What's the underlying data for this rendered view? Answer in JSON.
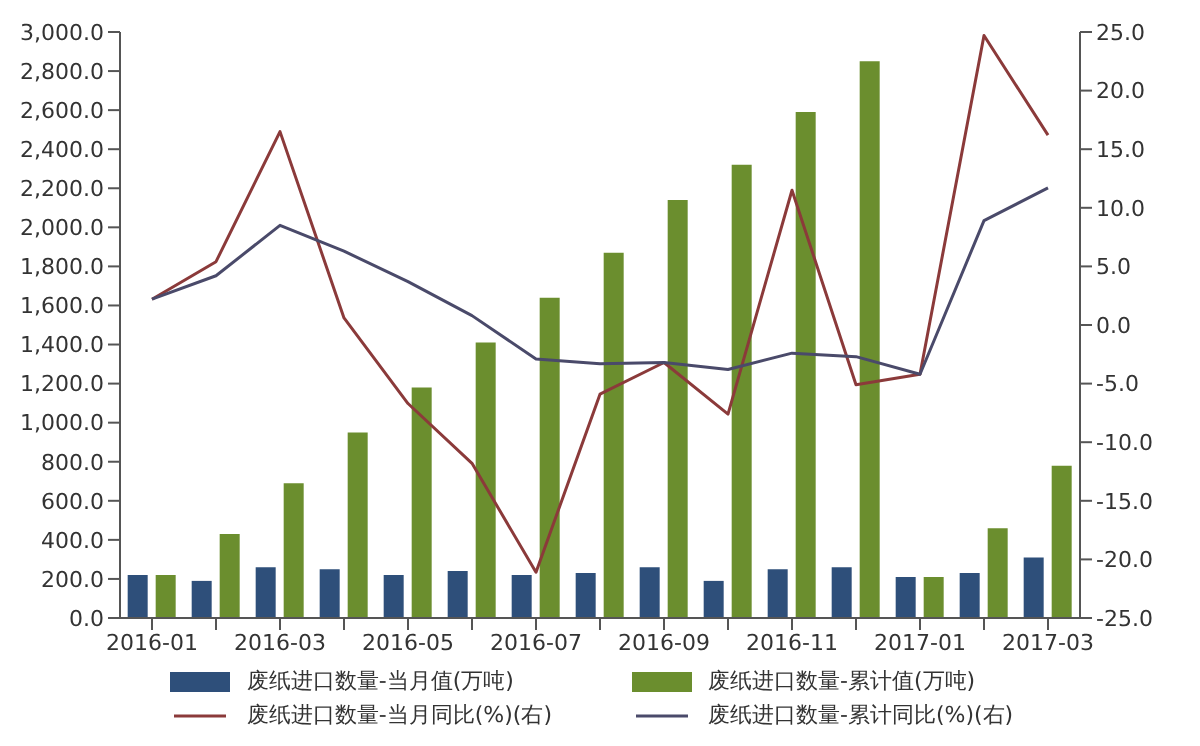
{
  "chart_data": {
    "type": "bar",
    "categories": [
      "2016-01",
      null,
      "2016-03",
      null,
      "2016-05",
      null,
      "2016-07",
      null,
      "2016-09",
      null,
      "2016-11",
      null,
      "2017-01",
      null,
      "2017-03"
    ],
    "series": [
      {
        "name": "废纸进口数量-当月值(万吨)",
        "color": "#2e4f7a",
        "values": [
          220,
          190,
          260,
          250,
          220,
          240,
          220,
          230,
          260,
          190,
          250,
          260,
          210,
          230,
          310
        ]
      },
      {
        "name": "废纸进口数量-累计值(万吨)",
        "color": "#6b8e2e",
        "values": [
          220,
          430,
          690,
          950,
          1180,
          1410,
          1640,
          1870,
          2140,
          2320,
          2590,
          2850,
          210,
          460,
          780
        ]
      },
      {
        "name": "废纸进口数量-当月同比(%)(右)",
        "type": "line",
        "axis": "y2",
        "color": "#8b3a3a",
        "values": [
          2.2,
          5.4,
          16.5,
          0.6,
          -6.7,
          -11.8,
          -21.1,
          -5.9,
          -3.2,
          -7.6,
          11.5,
          -5.1,
          -4.2,
          24.7,
          16.2
        ]
      },
      {
        "name": "废纸进口数量-累计同比(%)(右)",
        "type": "line",
        "axis": "y2",
        "color": "#4a4a6a",
        "values": [
          2.2,
          4.2,
          8.5,
          6.3,
          3.7,
          0.8,
          -2.9,
          -3.3,
          -3.2,
          -3.8,
          -2.4,
          -2.7,
          -4.2,
          8.9,
          11.7
        ]
      }
    ],
    "ylim": [
      0,
      3000
    ],
    "yticks": [
      {
        "value": 0,
        "label": "0.0"
      },
      {
        "value": 200,
        "label": "200.0"
      },
      {
        "value": 400,
        "label": "400.0"
      },
      {
        "value": 600,
        "label": "600.0"
      },
      {
        "value": 800,
        "label": "800.0"
      },
      {
        "value": 1000,
        "label": "1,000.0"
      },
      {
        "value": 1200,
        "label": "1,200.0"
      },
      {
        "value": 1400,
        "label": "1,400.0"
      },
      {
        "value": 1600,
        "label": "1,600.0"
      },
      {
        "value": 1800,
        "label": "1,800.0"
      },
      {
        "value": 2000,
        "label": "2,000.0"
      },
      {
        "value": 2200,
        "label": "2,200.0"
      },
      {
        "value": 2400,
        "label": "2,400.0"
      },
      {
        "value": 2600,
        "label": "2,600.0"
      },
      {
        "value": 2800,
        "label": "2,800.0"
      },
      {
        "value": 3000,
        "label": "3,000.0"
      }
    ],
    "y2lim": [
      -25,
      25
    ],
    "y2ticks": [
      {
        "value": -25,
        "label": "-25.0"
      },
      {
        "value": -20,
        "label": "-20.0"
      },
      {
        "value": -15,
        "label": "-15.0"
      },
      {
        "value": -10,
        "label": "-10.0"
      },
      {
        "value": -5,
        "label": "-5.0"
      },
      {
        "value": 0,
        "label": "0.0"
      },
      {
        "value": 5,
        "label": "5.0"
      },
      {
        "value": 10,
        "label": "10.0"
      },
      {
        "value": 15,
        "label": "15.0"
      },
      {
        "value": 20,
        "label": "20.0"
      },
      {
        "value": 25,
        "label": "25.0"
      }
    ],
    "legend": "bottom",
    "grid": false,
    "marker": "none"
  }
}
